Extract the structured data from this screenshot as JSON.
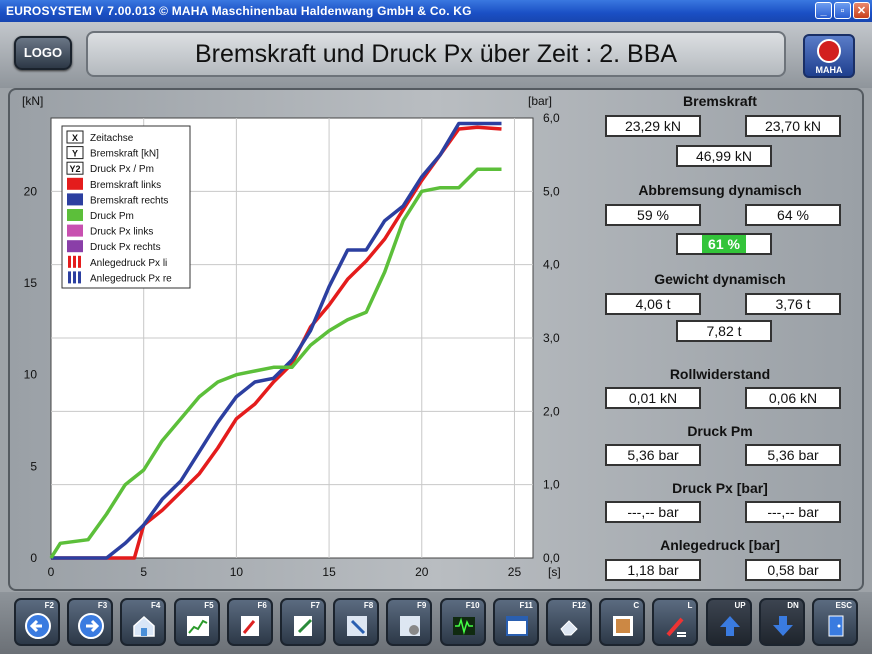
{
  "window": {
    "title": "EUROSYSTEM  V 7.00.013  © MAHA Maschinenbau Haldenwang GmbH & Co. KG",
    "minimize_icon": "minimize-icon",
    "maximize_icon": "restore-icon",
    "close_icon": "close-icon"
  },
  "header": {
    "logo_label": "LOGO",
    "title": "Bremskraft und Druck Px über Zeit : 2. BBA",
    "brand": "MAHA"
  },
  "chart_data": {
    "type": "line",
    "x_unit": "[s]",
    "y_left_unit": "[kN]",
    "y_right_unit": "[bar]",
    "xlim": [
      0,
      26
    ],
    "ylim_left": [
      0,
      24
    ],
    "ylim_right": [
      0,
      6
    ],
    "x_ticks": [
      "0",
      "5",
      "10",
      "15",
      "20",
      "25"
    ],
    "y_left_ticks": [
      "0",
      "5",
      "10",
      "15",
      "20"
    ],
    "y_right_ticks": [
      "0,0",
      "1,0",
      "2,0",
      "3,0",
      "4,0",
      "5,0",
      "6,0"
    ],
    "grid": true,
    "legend": [
      {
        "marker": "X",
        "label": "Zeitachse"
      },
      {
        "marker": "Y",
        "label": "Bremskraft [kN]"
      },
      {
        "marker": "Y2",
        "label": "Druck Px / Pm"
      },
      {
        "color": "#e41c1c",
        "label": "Bremskraft links"
      },
      {
        "color": "#2c3fa0",
        "label": "Bremskraft rechts"
      },
      {
        "color": "#5cbf3a",
        "label": "Druck Pm"
      },
      {
        "color": "#c850b0",
        "label": "Druck Px links"
      },
      {
        "color": "#8a3fa8",
        "label": "Druck Px rechts"
      },
      {
        "color": "#e41c1c",
        "dashed": true,
        "label": "Anlegedruck Px li"
      },
      {
        "color": "#2c3fa0",
        "dashed": true,
        "label": "Anlegedruck Px re"
      }
    ],
    "series": [
      {
        "name": "Bremskraft links",
        "color": "#e41c1c",
        "axis": "left",
        "x": [
          0,
          4.5,
          5,
          6,
          7,
          8,
          9,
          10,
          11,
          12,
          13,
          14,
          15,
          16,
          17,
          18,
          19,
          20,
          21,
          22,
          23,
          24.3
        ],
        "y": [
          0,
          0,
          1.8,
          2.6,
          3.6,
          4.6,
          6,
          7.6,
          8.4,
          9.6,
          10.6,
          12.6,
          13.8,
          15.2,
          16.2,
          17.4,
          19,
          20.6,
          22,
          23.4,
          23.5,
          23.4
        ]
      },
      {
        "name": "Bremskraft rechts",
        "color": "#2c3fa0",
        "axis": "left",
        "x": [
          0,
          3,
          4,
          5,
          6,
          7,
          8,
          9,
          10,
          11,
          12,
          13,
          14,
          15,
          16,
          17,
          18,
          19,
          20,
          21,
          22,
          23,
          24.3
        ],
        "y": [
          0,
          0,
          0.8,
          1.8,
          3.2,
          4.2,
          5.8,
          7.4,
          8.8,
          9.6,
          9.8,
          10.8,
          12.4,
          14.8,
          16.8,
          16.8,
          18.4,
          19.2,
          20.8,
          22,
          23.7,
          23.7,
          23.7
        ]
      },
      {
        "name": "Druck Pm",
        "color": "#5cbf3a",
        "axis": "right",
        "x": [
          0,
          0.5,
          2,
          3,
          4,
          5,
          6,
          7,
          8,
          9,
          10,
          11,
          12,
          13,
          14,
          15,
          16,
          17,
          18,
          19,
          20,
          21,
          22,
          23,
          24.3
        ],
        "y": [
          0,
          0.2,
          0.25,
          0.6,
          1.0,
          1.2,
          1.6,
          1.9,
          2.2,
          2.4,
          2.5,
          2.55,
          2.6,
          2.6,
          2.9,
          3.1,
          3.25,
          3.35,
          3.9,
          4.6,
          5.0,
          5.05,
          5.05,
          5.3,
          5.3
        ]
      }
    ]
  },
  "panel": {
    "bremskraft": {
      "title": "Bremskraft",
      "left": "23,29 kN",
      "right": "23,70 kN",
      "sum": "46,99 kN"
    },
    "abbremsung": {
      "title": "Abbremsung dynamisch",
      "left": "59 %",
      "right": "64 %",
      "total": "61 %",
      "total_color": "#33c43a"
    },
    "gewicht": {
      "title": "Gewicht dynamisch",
      "left": "4,06 t",
      "right": "3,76 t",
      "sum": "7,82 t"
    },
    "rollwiderstand": {
      "title": "Rollwiderstand",
      "left": "0,01 kN",
      "right": "0,06 kN"
    },
    "druck_pm": {
      "title": "Druck Pm",
      "left": "5,36 bar",
      "right": "5,36 bar"
    },
    "druck_px": {
      "title": "Druck Px  [bar]",
      "left": "---,-- bar",
      "right": "---,-- bar"
    },
    "anlegedruck": {
      "title": "Anlegedruck [bar]",
      "left": "1,18 bar",
      "right": "0,58 bar"
    }
  },
  "toolbar": {
    "keys": [
      {
        "label": "F2",
        "icon": "arrow-left-icon"
      },
      {
        "label": "F3",
        "icon": "arrow-right-icon"
      },
      {
        "label": "F4",
        "icon": "home-icon"
      },
      {
        "label": "F5",
        "icon": "chart-icon"
      },
      {
        "label": "F6",
        "icon": "print-preview-icon"
      },
      {
        "label": "F7",
        "icon": "edit-icon"
      },
      {
        "label": "F8",
        "icon": "pointer-icon"
      },
      {
        "label": "F9",
        "icon": "settings-icon"
      },
      {
        "label": "F10",
        "icon": "oscilloscope-icon"
      },
      {
        "label": "F11",
        "icon": "window-icon"
      },
      {
        "label": "F12",
        "icon": "eraser-icon"
      },
      {
        "label": "C",
        "icon": "color-palette-icon"
      },
      {
        "label": "L",
        "icon": "brush-icon"
      },
      {
        "label": "UP",
        "icon": "arrow-up-icon"
      },
      {
        "label": "DN",
        "icon": "arrow-down-icon"
      },
      {
        "label": "ESC",
        "icon": "exit-door-icon"
      }
    ]
  }
}
